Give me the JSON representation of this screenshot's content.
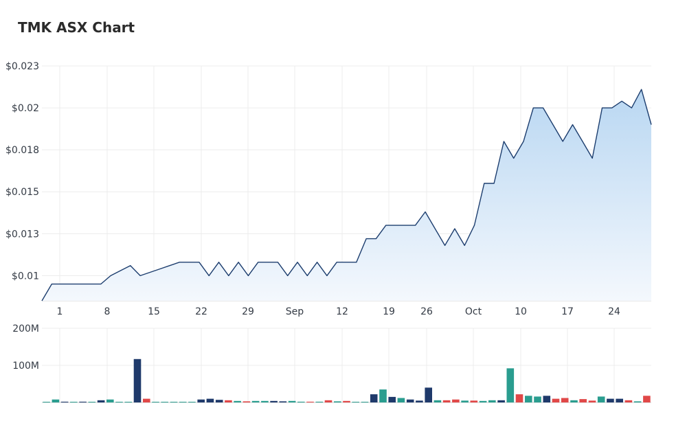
{
  "title": "TMK ASX Chart",
  "colors": {
    "line": "#1c3d6e",
    "area_top": "#b9d7f2",
    "area_bottom": "#f4f8fd",
    "grid": "#ececec",
    "vol_navy": "#1f3a6b",
    "vol_teal": "#2a9d8f",
    "vol_red": "#e04848"
  },
  "chart_data": [
    {
      "type": "area",
      "x_tick_labels": [
        "1",
        "8",
        "15",
        "22",
        "29",
        "Sep",
        "12",
        "19",
        "26",
        "Oct",
        "10",
        "17",
        "24"
      ],
      "y_tick_labels": [
        "$0.023",
        "$0.02",
        "$0.018",
        "$0.015",
        "$0.013",
        "$0.01"
      ],
      "y_ticks": [
        0.0225,
        0.02,
        0.0175,
        0.015,
        0.0125,
        0.01
      ],
      "ylim": [
        0.0085,
        0.0225
      ],
      "grid": true,
      "series": [
        {
          "values": [
            0.0085,
            0.0095,
            0.0095,
            0.0095,
            0.0095,
            0.0095,
            0.0095,
            0.01,
            0.0103,
            0.0106,
            0.01,
            0.0102,
            0.0104,
            0.0106,
            0.0108,
            0.0108,
            0.0108,
            0.01,
            0.0108,
            0.01,
            0.0108,
            0.01,
            0.0108,
            0.0108,
            0.0108,
            0.01,
            0.0108,
            0.01,
            0.0108,
            0.01,
            0.0108,
            0.0108,
            0.0108,
            0.0122,
            0.0122,
            0.013,
            0.013,
            0.013,
            0.013,
            0.0138,
            0.0128,
            0.0118,
            0.0128,
            0.0118,
            0.013,
            0.0155,
            0.0155,
            0.018,
            0.017,
            0.018,
            0.02,
            0.02,
            0.019,
            0.018,
            0.019,
            0.018,
            0.017,
            0.02,
            0.02,
            0.0204,
            0.02,
            0.0211,
            0.019
          ]
        }
      ]
    },
    {
      "type": "bar",
      "y_tick_labels": [
        "200M",
        "100M"
      ],
      "y_ticks": [
        200,
        100
      ],
      "ylim": [
        0,
        200
      ],
      "unit": "M",
      "series": [
        {
          "values": [
            0,
            8,
            2,
            1,
            2,
            1,
            6,
            8,
            1,
            1,
            117,
            10,
            1,
            1,
            1,
            1,
            1,
            8,
            10,
            7,
            6,
            4,
            3,
            4,
            4,
            4,
            3,
            4,
            2,
            2,
            2,
            6,
            3,
            4,
            1,
            1,
            22,
            35,
            15,
            12,
            8,
            5,
            40,
            6,
            6,
            8,
            5,
            5,
            4,
            6,
            6,
            92,
            22,
            18,
            16,
            18,
            10,
            12,
            6,
            9,
            5,
            16,
            10,
            10,
            6,
            3,
            18
          ],
          "colors": [
            "t",
            "t",
            "n",
            "t",
            "n",
            "t",
            "n",
            "t",
            "t",
            "t",
            "n",
            "r",
            "t",
            "t",
            "t",
            "t",
            "t",
            "n",
            "n",
            "n",
            "r",
            "t",
            "r",
            "t",
            "t",
            "n",
            "n",
            "t",
            "t",
            "r",
            "t",
            "r",
            "t",
            "r",
            "t",
            "t",
            "n",
            "t",
            "n",
            "t",
            "n",
            "n",
            "n",
            "t",
            "r",
            "r",
            "t",
            "r",
            "t",
            "t",
            "n",
            "t",
            "r",
            "t",
            "t",
            "n",
            "r",
            "r",
            "t",
            "r",
            "r",
            "t",
            "n",
            "n",
            "r",
            "t",
            "r"
          ]
        }
      ]
    }
  ]
}
